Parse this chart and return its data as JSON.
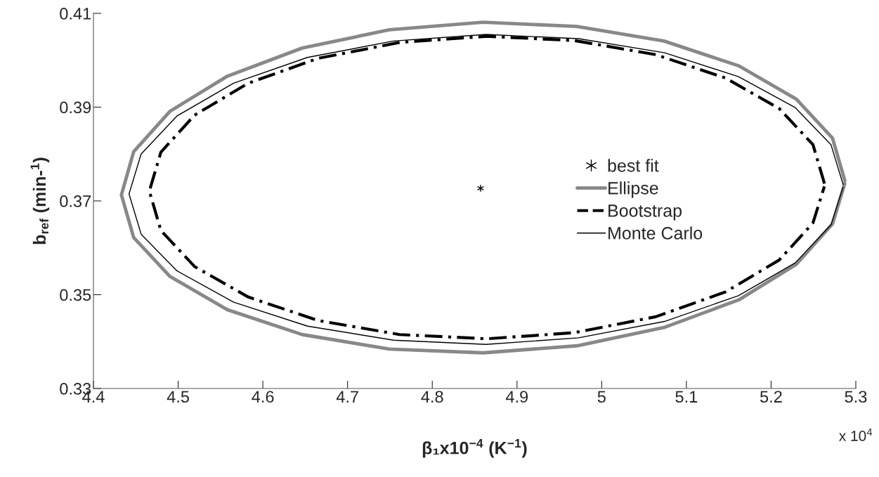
{
  "chart_data": {
    "type": "line",
    "xlabel": "β₁x10$^{−4}$ (K$^{−1}$)",
    "ylabel": "b$_{ref}$ (min-$^{1}$)",
    "xlim": [
      4.4,
      5.3
    ],
    "xticks": [
      4.4,
      4.5,
      4.6,
      4.7,
      4.8,
      4.9,
      5,
      5.1,
      5.2,
      5.3
    ],
    "ylim": [
      0.33,
      0.41
    ],
    "yticks": [
      0.33,
      0.35,
      0.37,
      0.39,
      0.41
    ],
    "annotations": [
      "x 10$^{4}$"
    ],
    "legend": "right",
    "grid": false,
    "series": [
      {
        "name": "best fit",
        "type": "scatter",
        "marker": "cross",
        "color": "#000000",
        "x": [
          4.857
        ],
        "values": [
          0.3727
        ]
      },
      {
        "name": "Ellipse",
        "color": "#888888",
        "line_style": "solid",
        "x": [
          5.287,
          5.2725,
          5.2298,
          5.1619,
          5.0735,
          4.9706,
          4.86,
          4.7494,
          4.6465,
          4.5581,
          4.4902,
          4.4475,
          4.433,
          4.4475,
          4.4902,
          4.5581,
          4.6465,
          4.7494,
          4.86,
          4.9706,
          5.0735,
          5.1619,
          5.2298,
          5.2725,
          5.2869
        ],
        "values": [
          0.3743,
          0.3834,
          0.3917,
          0.3988,
          0.4041,
          0.4072,
          0.4081,
          0.4065,
          0.4026,
          0.3966,
          0.3891,
          0.3805,
          0.3713,
          0.3622,
          0.3539,
          0.3468,
          0.3415,
          0.3384,
          0.3376,
          0.3391,
          0.343,
          0.3489,
          0.3565,
          0.3651,
          0.3737
        ]
      },
      {
        "name": "Bootstrap",
        "color": "#000000",
        "line_style": "dashed",
        "x": [
          5.263,
          5.2494,
          5.2096,
          5.1462,
          5.0638,
          4.9676,
          4.8645,
          4.7614,
          4.6652,
          4.5828,
          4.5194,
          4.4796,
          4.466,
          4.4796,
          4.5194,
          4.5828,
          4.6652,
          4.7614,
          4.8645,
          4.9676,
          5.0638,
          5.1462,
          5.2096,
          5.2494,
          5.2629
        ],
        "values": [
          0.3737,
          0.382,
          0.3897,
          0.3962,
          0.4012,
          0.4042,
          0.4051,
          0.4038,
          0.4004,
          0.3951,
          0.3883,
          0.3804,
          0.3721,
          0.3637,
          0.356,
          0.3495,
          0.3445,
          0.3415,
          0.3406,
          0.3419,
          0.3453,
          0.3506,
          0.3574,
          0.3653,
          0.3731
        ]
      },
      {
        "name": "Monte Carlo",
        "color": "#000000",
        "line_style": "solid",
        "x": [
          5.285,
          5.2707,
          5.2285,
          5.1615,
          5.0743,
          4.9727,
          4.8635,
          4.7543,
          4.6527,
          4.5655,
          4.4985,
          4.4563,
          4.442,
          4.4563,
          4.4985,
          4.5655,
          4.6527,
          4.7543,
          4.8635,
          4.9727,
          5.0743,
          5.1615,
          5.2285,
          5.2707,
          5.2849
        ],
        "values": [
          0.3735,
          0.382,
          0.3899,
          0.3965,
          0.4016,
          0.4046,
          0.4055,
          0.4041,
          0.4006,
          0.3951,
          0.3881,
          0.38,
          0.3715,
          0.3629,
          0.3551,
          0.3484,
          0.3433,
          0.3403,
          0.3394,
          0.3408,
          0.3443,
          0.3498,
          0.3568,
          0.3649,
          0.3729
        ]
      }
    ]
  }
}
